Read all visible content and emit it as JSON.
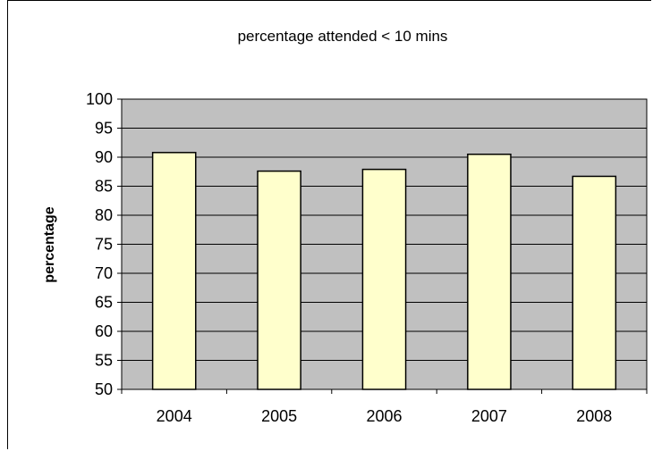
{
  "chart_data": {
    "type": "bar",
    "title": "percentage attended < 10 mins",
    "xlabel": "",
    "ylabel": "percentage",
    "categories": [
      "2004",
      "2005",
      "2006",
      "2007",
      "2008"
    ],
    "values": [
      90.8,
      87.6,
      87.9,
      90.5,
      86.7
    ],
    "ylim": [
      50,
      100
    ],
    "yticks": [
      "50",
      "55",
      "60",
      "65",
      "70",
      "75",
      "80",
      "85",
      "90",
      "95",
      "100"
    ],
    "grid": true,
    "legend": "none",
    "colors": {
      "plot_background": "#c0c0c0",
      "bar_fill": "#ffffcc",
      "bar_stroke": "#000000",
      "gridline": "#000000"
    }
  }
}
